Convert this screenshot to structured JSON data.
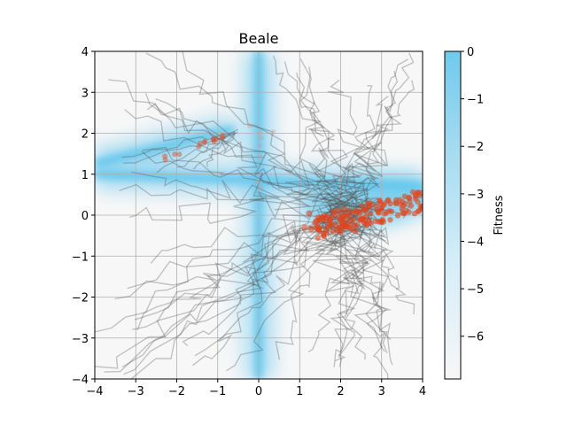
{
  "chart_data": {
    "type": "heatmap",
    "title": "Beale",
    "xlabel": "",
    "ylabel": "",
    "xlim": [
      -4,
      4
    ],
    "ylim": [
      -4,
      4
    ],
    "x_ticks": [
      "−4",
      "−3",
      "−2",
      "−1",
      "0",
      "1",
      "2",
      "3",
      "4"
    ],
    "y_ticks": [
      "−4",
      "−3",
      "−2",
      "−1",
      "0",
      "1",
      "2",
      "3",
      "4"
    ],
    "grid": true,
    "colorbar": {
      "label": "Fitness",
      "range": [
        -6.9,
        0
      ],
      "ticks": [
        "0",
        "−1",
        "−2",
        "−3",
        "−4",
        "−5",
        "−6"
      ],
      "low_color": "#f7f7f7",
      "high_color": "#5bc3ea"
    },
    "minimum": {
      "x": 3,
      "y": 0.5
    },
    "trajectory_color": "#555555",
    "point_color": "#e0461e",
    "valley_ridges": [
      {
        "from": [
          -4,
          1.25
        ],
        "to": [
          -0.6,
          2.1
        ]
      },
      {
        "from": [
          0,
          4
        ],
        "to": [
          0,
          -4
        ]
      },
      {
        "from": [
          -4,
          1.0
        ],
        "to": [
          4,
          0.7
        ]
      }
    ]
  }
}
